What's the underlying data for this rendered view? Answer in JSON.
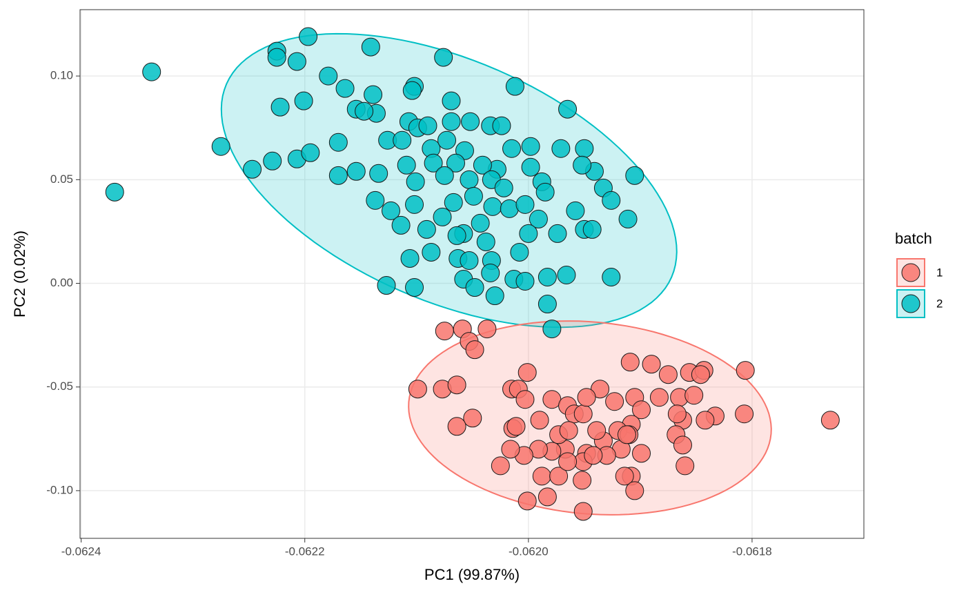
{
  "chart_data": {
    "type": "scatter",
    "x_label": "PC1 (99.87%)",
    "y_label": "PC2 (0.02%)",
    "legend_title": "batch",
    "legend": "right",
    "grid": true,
    "xlim": [
      -0.062401,
      -0.0617
    ],
    "xticks": [
      -0.0624,
      -0.0622,
      {
        "value": -0.062,
        "label": "-0.0620"
      },
      -0.0618
    ],
    "ylim": [
      -0.123,
      0.132
    ],
    "yticks": [
      {
        "value": -0.1,
        "label": "-0.10"
      },
      -0.05,
      {
        "value": 0,
        "label": "0.00"
      },
      0.05,
      {
        "value": 0.1,
        "label": "0.10"
      }
    ],
    "series": [
      {
        "name": "1",
        "color": "#F8766D",
        "ellipse": {
          "center": [
            -0.061945,
            -0.0649
          ],
          "axis1": [
            0.000162,
            -0.0077
          ],
          "axis2": [
            -7.4e-06,
            -0.0461
          ]
        },
        "x": [
          -0.062075,
          -0.062059,
          -0.062037,
          -0.062053,
          -0.062048,
          -0.062099,
          -0.062077,
          -0.062064,
          -0.06205,
          -0.062064,
          -0.062001,
          -0.062015,
          -0.062009,
          -0.062003,
          -0.062014,
          -0.062011,
          -0.06199,
          -0.061979,
          -0.061965,
          -0.061959,
          -0.061951,
          -0.061936,
          -0.061948,
          -0.061923,
          -0.061909,
          -0.06189,
          -0.061875,
          -0.061856,
          -0.061843,
          -0.061806,
          -0.06173,
          -0.061807,
          -0.061833,
          -0.061842,
          -0.061862,
          -0.061868,
          -0.061883,
          -0.061905,
          -0.061899,
          -0.061908,
          -0.06192,
          -0.061933,
          -0.061917,
          -0.061899,
          -0.06193,
          -0.061948,
          -0.061967,
          -0.061979,
          -0.061991,
          -0.062004,
          -0.062016,
          -0.062025,
          -0.061988,
          -0.061973,
          -0.061951,
          -0.061942,
          -0.061973,
          -0.061964,
          -0.061939,
          -0.06191,
          -0.061862,
          -0.06186,
          -0.061908,
          -0.061914,
          -0.061905,
          -0.061952,
          -0.061965,
          -0.062001,
          -0.061983,
          -0.061951,
          -0.061846,
          -0.061865,
          -0.061867,
          -0.061852,
          -0.061912
        ],
        "values": [
          -0.023,
          -0.022,
          -0.022,
          -0.028,
          -0.032,
          -0.051,
          -0.051,
          -0.049,
          -0.065,
          -0.069,
          -0.043,
          -0.051,
          -0.051,
          -0.056,
          -0.07,
          -0.069,
          -0.066,
          -0.056,
          -0.059,
          -0.063,
          -0.063,
          -0.051,
          -0.055,
          -0.057,
          -0.038,
          -0.039,
          -0.044,
          -0.043,
          -0.042,
          -0.042,
          -0.066,
          -0.063,
          -0.064,
          -0.066,
          -0.066,
          -0.073,
          -0.055,
          -0.055,
          -0.061,
          -0.068,
          -0.071,
          -0.076,
          -0.08,
          -0.082,
          -0.083,
          -0.082,
          -0.08,
          -0.081,
          -0.08,
          -0.083,
          -0.08,
          -0.088,
          -0.093,
          -0.093,
          -0.086,
          -0.083,
          -0.073,
          -0.071,
          -0.071,
          -0.073,
          -0.078,
          -0.088,
          -0.093,
          -0.093,
          -0.1,
          -0.095,
          -0.086,
          -0.105,
          -0.103,
          -0.11,
          -0.044,
          -0.055,
          -0.063,
          -0.054,
          -0.073
        ]
      },
      {
        "name": "2",
        "color": "#00BFC4",
        "ellipse": {
          "center": [
            -0.062071,
            0.0496
          ],
          "axis1": [
            0.000199,
            -0.0466
          ],
          "axis2": [
            -4.32e-05,
            -0.0533
          ]
        },
        "x": [
          -0.062337,
          -0.062197,
          -0.062225,
          -0.062225,
          -0.062207,
          -0.062141,
          -0.062076,
          -0.062179,
          -0.062012,
          -0.062164,
          -0.062222,
          -0.062201,
          -0.062139,
          -0.062102,
          -0.062069,
          -0.061965,
          -0.062104,
          -0.062154,
          -0.062136,
          -0.062147,
          -0.062275,
          -0.06237,
          -0.062247,
          -0.062229,
          -0.062207,
          -0.062195,
          -0.06217,
          -0.06217,
          -0.062154,
          -0.062134,
          -0.062107,
          -0.062099,
          -0.06209,
          -0.062069,
          -0.062052,
          -0.062034,
          -0.062024,
          -0.062126,
          -0.062113,
          -0.062087,
          -0.062073,
          -0.062057,
          -0.062015,
          -0.061998,
          -0.061971,
          -0.06195,
          -0.061998,
          -0.061988,
          -0.062028,
          -0.062041,
          -0.062065,
          -0.062085,
          -0.062109,
          -0.062101,
          -0.062075,
          -0.062053,
          -0.062033,
          -0.062022,
          -0.061985,
          -0.061941,
          -0.061952,
          -0.061933,
          -0.061926,
          -0.061958,
          -0.061911,
          -0.061905,
          -0.062137,
          -0.062123,
          -0.062114,
          -0.062102,
          -0.062091,
          -0.062077,
          -0.062067,
          -0.062049,
          -0.062032,
          -0.062017,
          -0.062003,
          -0.061991,
          -0.062043,
          -0.062058,
          -0.062064,
          -0.062087,
          -0.062106,
          -0.062063,
          -0.062053,
          -0.062038,
          -0.062033,
          -0.062008,
          -0.062,
          -0.061974,
          -0.06195,
          -0.061943,
          -0.062127,
          -0.062102,
          -0.062058,
          -0.062048,
          -0.062034,
          -0.06203,
          -0.062013,
          -0.062003,
          -0.061983,
          -0.061966,
          -0.061926,
          -0.061983,
          -0.061979
        ],
        "values": [
          0.102,
          0.119,
          0.112,
          0.109,
          0.107,
          0.114,
          0.109,
          0.1,
          0.095,
          0.094,
          0.085,
          0.088,
          0.091,
          0.095,
          0.088,
          0.084,
          0.093,
          0.084,
          0.082,
          0.083,
          0.066,
          0.044,
          0.055,
          0.059,
          0.06,
          0.063,
          0.068,
          0.052,
          0.054,
          0.053,
          0.078,
          0.075,
          0.076,
          0.078,
          0.078,
          0.076,
          0.076,
          0.069,
          0.069,
          0.065,
          0.069,
          0.064,
          0.065,
          0.066,
          0.065,
          0.065,
          0.056,
          0.049,
          0.055,
          0.057,
          0.058,
          0.058,
          0.057,
          0.049,
          0.052,
          0.05,
          0.05,
          0.046,
          0.044,
          0.054,
          0.057,
          0.046,
          0.04,
          0.035,
          0.031,
          0.052,
          0.04,
          0.035,
          0.028,
          0.038,
          0.026,
          0.032,
          0.039,
          0.042,
          0.037,
          0.036,
          0.038,
          0.031,
          0.029,
          0.024,
          0.023,
          0.015,
          0.012,
          0.012,
          0.011,
          0.02,
          0.011,
          0.015,
          0.024,
          0.024,
          0.026,
          0.026,
          -0.001,
          -0.002,
          0.002,
          -0.002,
          0.005,
          -0.006,
          0.002,
          0.001,
          0.003,
          0.004,
          0.003,
          -0.01,
          -0.022
        ]
      }
    ]
  }
}
